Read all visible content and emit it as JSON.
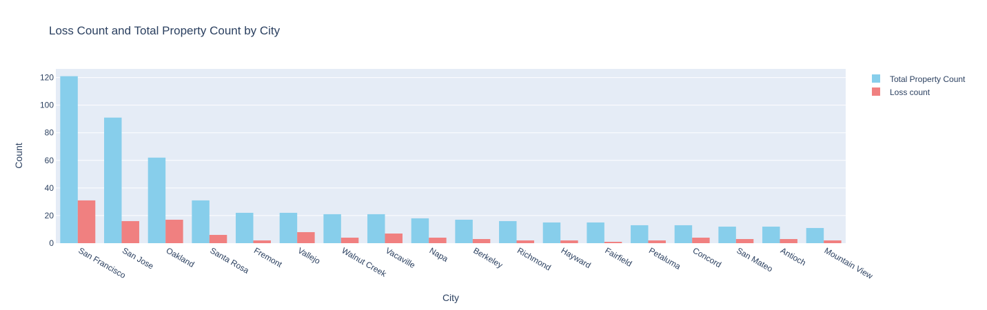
{
  "chart_data": {
    "type": "bar",
    "title": "Loss Count and Total Property Count by City",
    "xlabel": "City",
    "ylabel": "Count",
    "categories": [
      "San Francisco",
      "San Jose",
      "Oakland",
      "Santa Rosa",
      "Fremont",
      "Vallejo",
      "Walnut Creek",
      "Vacaville",
      "Napa",
      "Berkeley",
      "Richmond",
      "Hayward",
      "Fairfield",
      "Petaluma",
      "Concord",
      "San Mateo",
      "Antioch",
      "Mountain View"
    ],
    "series": [
      {
        "name": "Total Property Count",
        "color": "#87ceeb",
        "values": [
          121,
          91,
          62,
          31,
          22,
          22,
          21,
          21,
          18,
          17,
          16,
          15,
          15,
          13,
          13,
          12,
          12,
          11
        ]
      },
      {
        "name": "Loss count",
        "color": "#f08080",
        "values": [
          31,
          16,
          17,
          6,
          2,
          8,
          4,
          7,
          4,
          3,
          2,
          2,
          1,
          2,
          4,
          3,
          3,
          2
        ]
      }
    ],
    "ylim": [
      0,
      126.3
    ],
    "yticks": [
      0,
      20,
      40,
      60,
      80,
      100,
      120
    ],
    "grid": true,
    "legend_position": "top-right",
    "plot_background": "#e5ecf6"
  }
}
